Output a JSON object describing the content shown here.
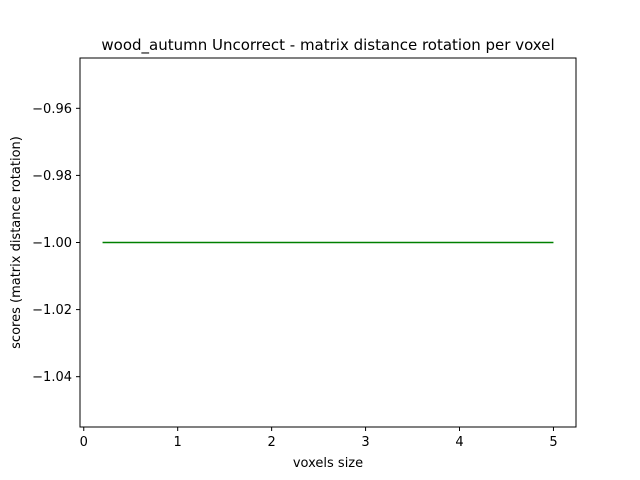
{
  "chart_data": {
    "type": "line",
    "title": "wood_autumn Uncorrect - matrix distance rotation per voxel",
    "xlabel": "voxels size",
    "ylabel": "scores (matrix distance rotation)",
    "xlim": [
      -0.04,
      5.24
    ],
    "ylim": [
      -1.055,
      -0.945
    ],
    "x_ticks": [
      0,
      1,
      2,
      3,
      4,
      5
    ],
    "y_ticks": [
      -0.96,
      -0.98,
      -1.0,
      -1.02,
      -1.04
    ],
    "x_tick_labels": [
      "0",
      "1",
      "2",
      "3",
      "4",
      "5"
    ],
    "y_tick_labels": [
      "−0.96",
      "−0.98",
      "−1.00",
      "−1.02",
      "−1.04"
    ],
    "grid": false,
    "legend": "none",
    "series": [
      {
        "color": "#008000",
        "x": [
          0.2,
          5.0
        ],
        "y": [
          -1.0,
          -1.0
        ]
      }
    ]
  }
}
